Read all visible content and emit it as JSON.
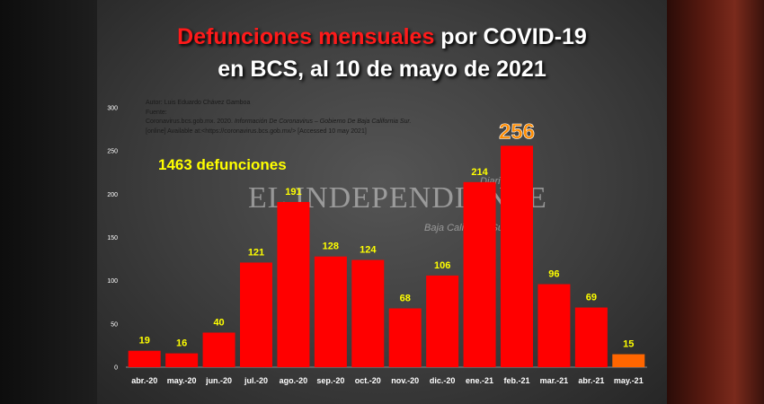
{
  "title": {
    "line1_highlight": "Defunciones mensuales",
    "line1_rest": " por COVID-19",
    "line2": "en BCS, al 10 de mayo de 2021"
  },
  "source": {
    "author": "Autor: Luis Eduardo Chávez Gamboa",
    "label": "Fuente:",
    "citation_prefix": "Coronavirus.bcs.gob.mx. 2020. ",
    "citation_italic": "Información De Coronavirus – Gobierno De Baja California Sur.",
    "citation_line2": "[online] Available at:<https://coronavirus.bcs.gob.mx/> [Accessed 10  may 2021]"
  },
  "total_label": "1463 defunciones",
  "watermark": {
    "name": "EL INDEPENDIENTE",
    "top": "Diario",
    "bottom": "Baja California Sur"
  },
  "colors": {
    "bar": "#ff0000",
    "bar_last": "#ff6600",
    "label": "#ffff00",
    "peak_label": "#ff8c00",
    "axis_text": "#ffffff"
  },
  "chart_data": {
    "type": "bar",
    "categories": [
      "abr.-20",
      "may.-20",
      "jun.-20",
      "jul.-20",
      "ago.-20",
      "sep.-20",
      "oct.-20",
      "nov.-20",
      "dic.-20",
      "ene.-21",
      "feb.-21",
      "mar.-21",
      "abr.-21",
      "may.-21"
    ],
    "values": [
      19,
      16,
      40,
      121,
      191,
      128,
      124,
      68,
      106,
      214,
      256,
      96,
      69,
      15
    ],
    "ylim": [
      0,
      300
    ],
    "yticks": [
      0,
      50,
      100,
      150,
      200,
      250,
      300
    ],
    "title": "Defunciones mensuales por COVID-19 en BCS, al 10 de mayo de 2021",
    "xlabel": "",
    "ylabel": "",
    "grid": false
  }
}
